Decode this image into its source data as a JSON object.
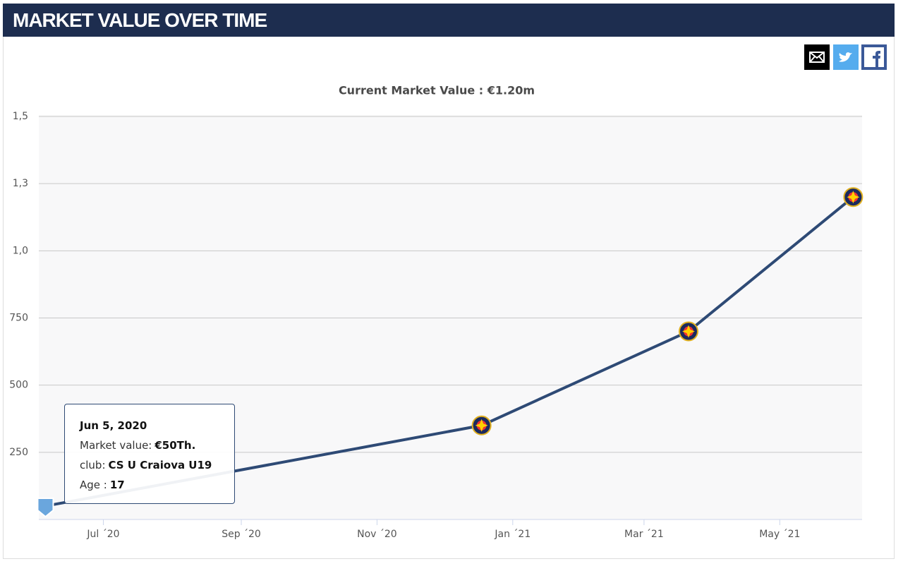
{
  "header": {
    "title": "MARKET VALUE OVER TIME"
  },
  "chart_data": {
    "type": "line",
    "subtitle": "Current Market Value : €1.20m",
    "x": [
      "2020-06-05",
      "2020-12-18",
      "2021-03-21",
      "2021-06-03"
    ],
    "series": [
      {
        "name": "Market value",
        "color": "#2e4a75",
        "values": [
          50,
          350,
          700,
          1200
        ]
      }
    ],
    "xlim": [
      "2020-06-02",
      "2021-06-07"
    ],
    "xticks": [
      {
        "value": "2020-07-01",
        "label": "Jul ´20"
      },
      {
        "value": "2020-09-01",
        "label": "Sep ´20"
      },
      {
        "value": "2020-11-01",
        "label": "Nov ´20"
      },
      {
        "value": "2021-01-01",
        "label": "Jan ´21"
      },
      {
        "value": "2021-03-01",
        "label": "Mar ´21"
      },
      {
        "value": "2021-05-01",
        "label": "May ´21"
      }
    ],
    "ylim": [
      0,
      1500
    ],
    "yticks": [
      250,
      500,
      750,
      {
        "value": 1000,
        "label": "1,0"
      },
      {
        "value": 1250,
        "label": "1,3"
      },
      {
        "value": 1500,
        "label": "1,5"
      }
    ],
    "grid": true,
    "tooltip": {
      "title": "Jun 5, 2020",
      "rows": [
        {
          "label": "Market value:",
          "value": "€50Th."
        },
        {
          "label": "club:",
          "value": "CS U Craiova U19"
        },
        {
          "label": "Age :",
          "value": "17"
        }
      ]
    }
  }
}
